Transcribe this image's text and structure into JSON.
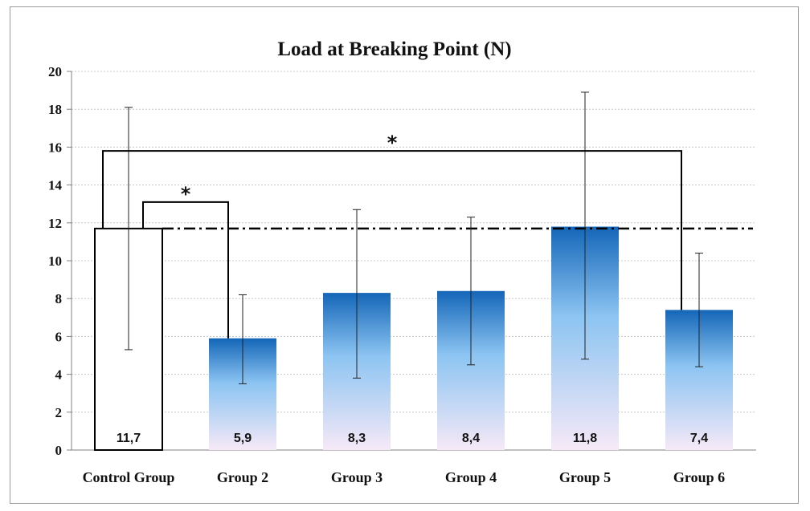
{
  "chart_data": {
    "type": "bar",
    "title": "Load at Breaking Point (N)",
    "xlabel": "",
    "ylabel": "",
    "ylim": [
      0,
      20
    ],
    "yticks": [
      0,
      2,
      4,
      6,
      8,
      10,
      12,
      14,
      16,
      18,
      20
    ],
    "grid": true,
    "categories": [
      "Control Group",
      "Group 2",
      "Group 3",
      "Group 4",
      "Group 5",
      "Group 6"
    ],
    "values": [
      11.7,
      5.9,
      8.3,
      8.4,
      11.8,
      7.4
    ],
    "value_labels": [
      "11,7",
      "5,9",
      "8,3",
      "8,4",
      "11,8",
      "7,4"
    ],
    "error_bars": [
      {
        "low": 5.3,
        "high": 18.1
      },
      {
        "low": 3.5,
        "high": 8.2
      },
      {
        "low": 3.8,
        "high": 12.7
      },
      {
        "low": 4.5,
        "high": 12.3
      },
      {
        "low": 4.8,
        "high": 18.9
      },
      {
        "low": 4.4,
        "high": 10.4
      }
    ],
    "reference_line": {
      "value": 11.7,
      "style": "dash-dot"
    },
    "significance": [
      {
        "from": "Control Group",
        "to": "Group 2",
        "y": 13.1,
        "label": "*"
      },
      {
        "from": "Control Group",
        "to": "Group 6",
        "y": 15.8,
        "label": "*"
      }
    ],
    "colors": {
      "control_fill": "#ffffff",
      "control_stroke": "#000000",
      "bar_top": "#1466b8",
      "bar_mid": "#8cc4f2",
      "bar_bottom": "#f6e9f7",
      "grid": "#c8c8c8",
      "axis": "#808080"
    }
  }
}
